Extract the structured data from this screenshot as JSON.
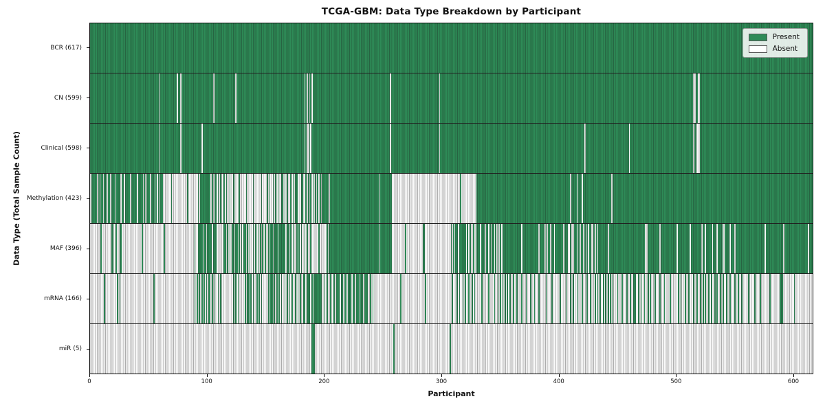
{
  "chart_data": {
    "type": "heatmap",
    "title": "TCGA-GBM: Data Type Breakdown by Participant",
    "xlabel": "Participant",
    "ylabel": "Data Type (Total Sample Count)",
    "x_max": 617,
    "x_ticks": [
      0,
      100,
      200,
      300,
      400,
      500,
      600
    ],
    "grid": false,
    "legend": {
      "position": "upper right",
      "entries": [
        {
          "label": "Present",
          "color": "#2e8b57"
        },
        {
          "label": "Absent",
          "color": "#ffffff"
        }
      ]
    },
    "colors": {
      "present": "#2e8b57",
      "absent": "#fbfbfb",
      "column_edge": "rgba(25,25,25,0.34)",
      "row_separator": "#222222"
    },
    "rows": [
      {
        "data_type": "BCR",
        "label": "BCR (617)",
        "present_count": 617,
        "segments": [
          [
            0,
            617,
            1
          ]
        ]
      },
      {
        "data_type": "CN",
        "label": "CN (599)",
        "present_count": 599,
        "segments": [
          [
            0,
            59,
            1
          ],
          [
            59,
            60,
            0
          ],
          [
            60,
            74,
            1
          ],
          [
            74,
            75,
            0
          ],
          [
            75,
            77,
            1
          ],
          [
            77,
            78,
            0
          ],
          [
            78,
            105,
            1
          ],
          [
            105,
            106,
            0
          ],
          [
            106,
            124,
            1
          ],
          [
            124,
            125,
            0
          ],
          [
            125,
            183,
            1
          ],
          [
            183,
            190,
            0.4
          ],
          [
            190,
            256,
            1
          ],
          [
            256,
            257,
            0
          ],
          [
            257,
            298,
            1
          ],
          [
            298,
            299,
            0
          ],
          [
            299,
            515,
            1
          ],
          [
            515,
            517,
            0
          ],
          [
            517,
            519,
            1
          ],
          [
            519,
            521,
            0
          ],
          [
            521,
            617,
            1
          ]
        ]
      },
      {
        "data_type": "Clinical",
        "label": "Clinical (598)",
        "present_count": 598,
        "segments": [
          [
            0,
            59,
            1
          ],
          [
            59,
            60,
            0
          ],
          [
            60,
            77,
            1
          ],
          [
            77,
            78,
            0
          ],
          [
            78,
            95,
            1
          ],
          [
            95,
            96,
            0
          ],
          [
            96,
            183,
            1
          ],
          [
            183,
            190,
            0.35
          ],
          [
            190,
            256,
            1
          ],
          [
            256,
            257,
            0
          ],
          [
            257,
            298,
            1
          ],
          [
            298,
            299,
            0
          ],
          [
            299,
            422,
            1
          ],
          [
            422,
            423,
            0
          ],
          [
            423,
            460,
            1
          ],
          [
            460,
            461,
            0
          ],
          [
            461,
            515,
            1
          ],
          [
            515,
            516,
            0
          ],
          [
            516,
            518,
            1
          ],
          [
            518,
            521,
            0
          ],
          [
            521,
            617,
            1
          ]
        ]
      },
      {
        "data_type": "Methylation",
        "label": "Methylation (423)",
        "present_count": 423,
        "segments": [
          [
            0,
            62,
            0.76
          ],
          [
            62,
            92,
            0.07
          ],
          [
            92,
            108,
            0.8
          ],
          [
            108,
            125,
            0.38
          ],
          [
            125,
            150,
            0.16
          ],
          [
            150,
            176,
            0.46
          ],
          [
            176,
            186,
            0.46
          ],
          [
            186,
            199,
            0.52
          ],
          [
            199,
            258,
            0.96
          ],
          [
            258,
            316,
            0
          ],
          [
            316,
            317,
            1
          ],
          [
            317,
            330,
            0
          ],
          [
            330,
            410,
            1
          ],
          [
            410,
            411,
            0
          ],
          [
            411,
            617,
            0.99
          ]
        ]
      },
      {
        "data_type": "MAF",
        "label": "MAF (396)",
        "present_count": 396,
        "segments": [
          [
            0,
            13,
            0.05
          ],
          [
            13,
            17,
            0
          ],
          [
            17,
            28,
            0.5
          ],
          [
            28,
            63,
            0.03
          ],
          [
            63,
            64,
            1
          ],
          [
            64,
            92,
            0.02
          ],
          [
            92,
            108,
            0.85
          ],
          [
            108,
            115,
            0.1
          ],
          [
            115,
            132,
            0.5
          ],
          [
            132,
            155,
            0.45
          ],
          [
            155,
            170,
            0.8
          ],
          [
            170,
            186,
            0.45
          ],
          [
            186,
            204,
            0.15
          ],
          [
            204,
            258,
            0.96
          ],
          [
            258,
            284,
            0.04
          ],
          [
            284,
            286,
            1
          ],
          [
            286,
            308,
            0
          ],
          [
            308,
            323,
            0.8
          ],
          [
            323,
            330,
            0.3
          ],
          [
            330,
            342,
            0.9
          ],
          [
            342,
            352,
            0.5
          ],
          [
            352,
            368,
            0.95
          ],
          [
            368,
            369,
            0
          ],
          [
            369,
            388,
            0.95
          ],
          [
            388,
            395,
            0.6
          ],
          [
            395,
            408,
            0.95
          ],
          [
            408,
            414,
            0.3
          ],
          [
            414,
            421,
            0.9
          ],
          [
            421,
            434,
            0.5
          ],
          [
            434,
            474,
            0.96
          ],
          [
            474,
            476,
            0
          ],
          [
            476,
            522,
            0.96
          ],
          [
            522,
            523,
            0
          ],
          [
            523,
            540,
            0.95
          ],
          [
            540,
            542,
            0
          ],
          [
            542,
            550,
            0.95
          ],
          [
            550,
            551,
            0
          ],
          [
            551,
            617,
            0.97
          ]
        ]
      },
      {
        "data_type": "mRNA",
        "label": "mRNA (166)",
        "present_count": 166,
        "segments": [
          [
            0,
            12,
            0.04
          ],
          [
            12,
            13,
            1
          ],
          [
            13,
            22,
            0
          ],
          [
            22,
            28,
            0.4
          ],
          [
            28,
            88,
            0.02
          ],
          [
            88,
            112,
            0.5
          ],
          [
            112,
            122,
            0.05
          ],
          [
            122,
            128,
            0.6
          ],
          [
            128,
            132,
            0
          ],
          [
            132,
            148,
            0.5
          ],
          [
            148,
            152,
            0.1
          ],
          [
            152,
            165,
            0.55
          ],
          [
            165,
            180,
            0.4
          ],
          [
            180,
            182,
            0
          ],
          [
            182,
            199,
            0.85
          ],
          [
            199,
            208,
            0.35
          ],
          [
            208,
            238,
            0.8
          ],
          [
            238,
            242,
            0.3
          ],
          [
            242,
            286,
            0.02
          ],
          [
            286,
            287,
            1
          ],
          [
            287,
            308,
            0.02
          ],
          [
            308,
            330,
            0.35
          ],
          [
            330,
            345,
            0.15
          ],
          [
            345,
            360,
            0.5
          ],
          [
            360,
            380,
            0.28
          ],
          [
            380,
            400,
            0.15
          ],
          [
            400,
            430,
            0.28
          ],
          [
            430,
            445,
            0.45
          ],
          [
            445,
            465,
            0.28
          ],
          [
            465,
            480,
            0.4
          ],
          [
            480,
            500,
            0.22
          ],
          [
            500,
            520,
            0.3
          ],
          [
            520,
            545,
            0.4
          ],
          [
            545,
            560,
            0.28
          ],
          [
            560,
            575,
            0.18
          ],
          [
            575,
            590,
            0.1
          ],
          [
            590,
            592,
            1
          ],
          [
            592,
            617,
            0.05
          ]
        ]
      },
      {
        "data_type": "miR",
        "label": "miR (5)",
        "present_count": 5,
        "segments": [
          [
            0,
            189,
            0
          ],
          [
            189,
            192,
            1
          ],
          [
            192,
            259,
            0
          ],
          [
            259,
            260,
            1
          ],
          [
            260,
            307,
            0
          ],
          [
            307,
            308,
            1
          ],
          [
            308,
            617,
            0
          ]
        ]
      }
    ]
  }
}
